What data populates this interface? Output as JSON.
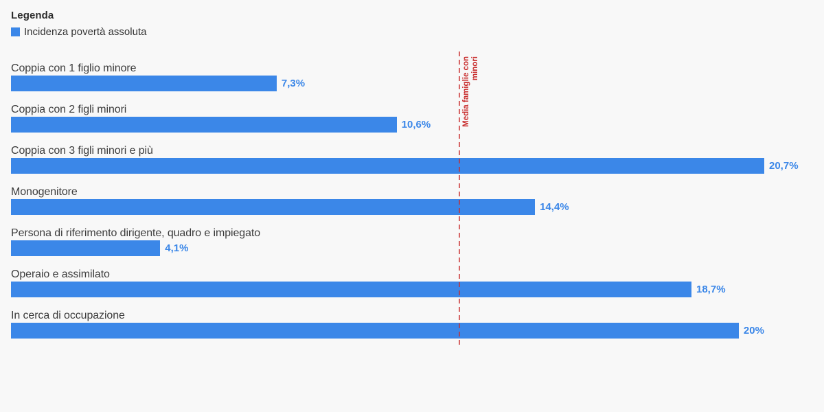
{
  "legend": {
    "title": "Legenda",
    "items": [
      {
        "label": "Incidenza povertà assoluta",
        "color": "#3b87e8"
      }
    ]
  },
  "chart_data": {
    "type": "bar",
    "orientation": "horizontal",
    "title": "",
    "xlabel": "",
    "ylabel": "",
    "grid": false,
    "legend_position": "top-left",
    "categories": [
      "Coppia con 1 figlio minore",
      "Coppia con 2 figli minori",
      "Coppia con 3 figli minori e più",
      "Monogenitore",
      "Persona di riferimento dirigente, quadro e impiegato",
      "Operaio e assimilato",
      "In cerca di occupazione"
    ],
    "series": [
      {
        "name": "Incidenza povertà assoluta",
        "values": [
          7.3,
          10.6,
          20.7,
          14.4,
          4.1,
          18.7,
          20
        ]
      }
    ],
    "value_labels": [
      "7,3%",
      "10,6%",
      "20,7%",
      "14,4%",
      "4,1%",
      "18,7%",
      "20%"
    ],
    "xlim": [
      0,
      21
    ],
    "bar_color": "#3b87e8",
    "value_label_color": "#3b87e8",
    "category_label_color": "#3c3c3c",
    "background_color": "#f8f8f8",
    "reference_line": {
      "label": "Media famiglie con minori",
      "value": 12.3,
      "color": "#c82d2d",
      "style": "dashed"
    }
  }
}
